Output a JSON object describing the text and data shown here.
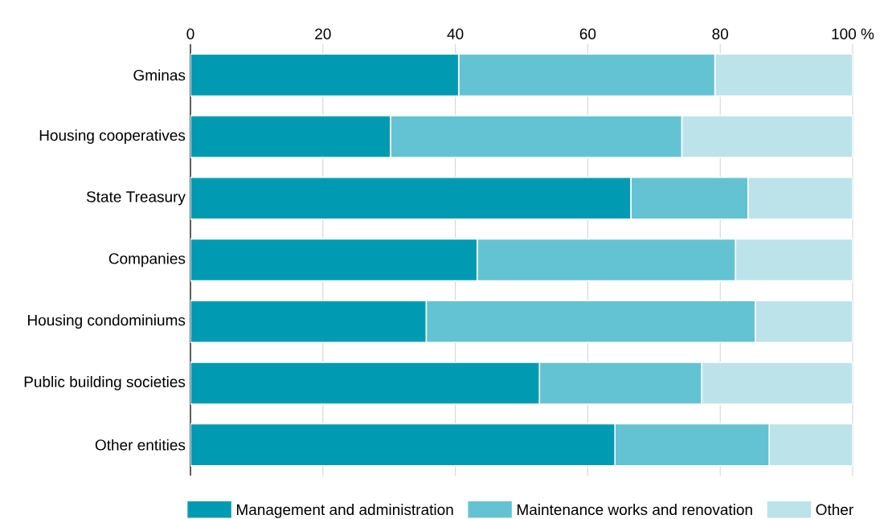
{
  "chart_data": {
    "type": "bar",
    "orientation": "horizontal",
    "stacked": true,
    "categories": [
      "Gminas",
      "Housing cooperatives",
      "State Treasury",
      "Companies",
      "Housing condominiums",
      "Public building societies",
      "Other entities"
    ],
    "series": [
      {
        "name": "Management and administration",
        "color": "#009bb2",
        "values": [
          40.5,
          30.2,
          66.5,
          43.3,
          35.6,
          52.7,
          64.1
        ]
      },
      {
        "name": "Maintenance works and renovation",
        "color": "#64c3d3",
        "values": [
          38.7,
          44.0,
          17.7,
          39.0,
          49.7,
          24.5,
          23.3
        ]
      },
      {
        "name": "Other",
        "color": "#bde3ea",
        "values": [
          20.8,
          25.8,
          15.8,
          17.7,
          14.7,
          22.8,
          12.6
        ]
      }
    ],
    "xlim": [
      0,
      100
    ],
    "xticks": [
      0,
      20,
      40,
      60,
      80,
      {
        "value": 100,
        "label": "100 %"
      }
    ],
    "grid": "x",
    "legend": "bottom"
  }
}
